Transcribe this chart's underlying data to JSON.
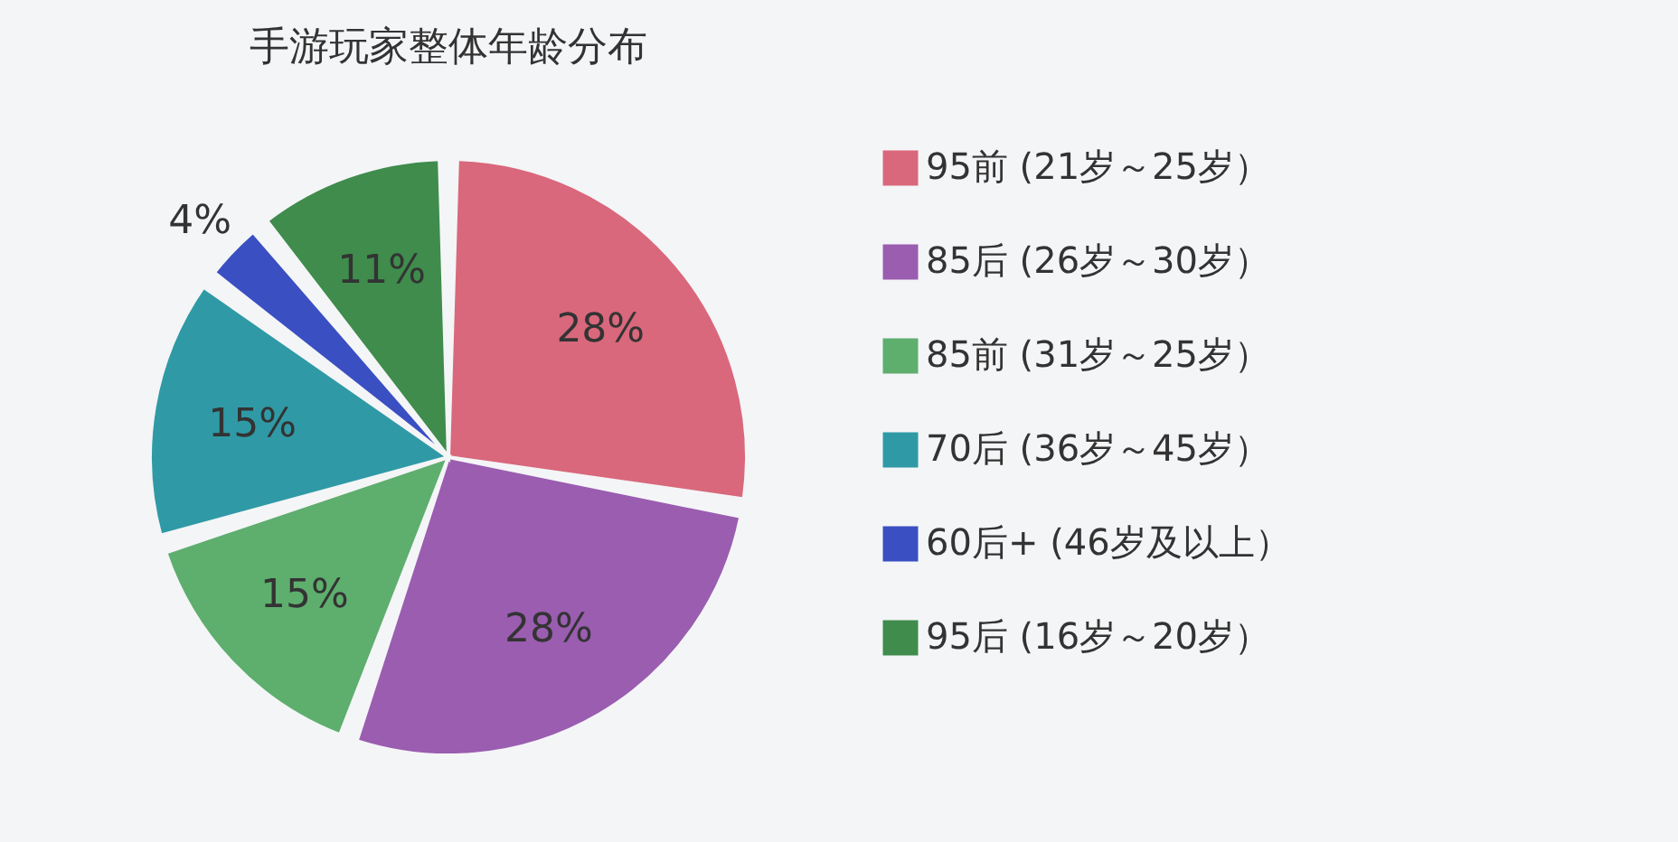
{
  "chart_data": {
    "type": "pie",
    "title": "手游玩家整体年龄分布",
    "categories": [
      "95前 (21岁～25岁）",
      "85后 (26岁～30岁）",
      "85前 (31岁～25岁）",
      "70后 (36岁～45岁）",
      "60后+ (46岁及以上）",
      "95后 (16岁～20岁）"
    ],
    "values": [
      28,
      28,
      15,
      15,
      4,
      11
    ],
    "colors": [
      "#d9687c",
      "#9a5db0",
      "#5eae6e",
      "#2f9aa6",
      "#3a4fc2",
      "#3f8c4c"
    ],
    "value_labels": [
      "28%",
      "28%",
      "15%",
      "15%",
      "4%",
      "11%"
    ],
    "legend": "right"
  }
}
